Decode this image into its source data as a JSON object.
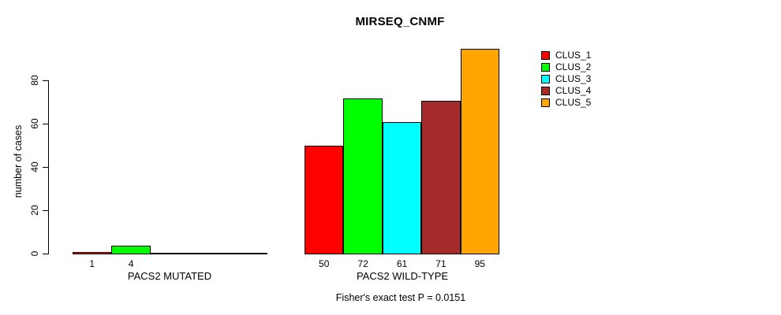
{
  "chart_data": {
    "type": "bar",
    "title": "MIRSEQ_CNMF",
    "ylabel": "number of cases",
    "xlabel": "",
    "categories": [
      "PACS2 MUTATED",
      "PACS2 WILD-TYPE"
    ],
    "series": [
      {
        "name": "CLUS_1",
        "color": "#FF0000",
        "values": [
          1,
          50
        ]
      },
      {
        "name": "CLUS_2",
        "color": "#00FF00",
        "values": [
          4,
          72
        ]
      },
      {
        "name": "CLUS_3",
        "color": "#00FFFF",
        "values": [
          0,
          61
        ]
      },
      {
        "name": "CLUS_4",
        "color": "#A52A2A",
        "values": [
          0,
          71
        ]
      },
      {
        "name": "CLUS_5",
        "color": "#FFA500",
        "values": [
          0,
          95
        ]
      }
    ],
    "bar_labels": [
      [
        "1",
        "4",
        "",
        "",
        ""
      ],
      [
        "50",
        "72",
        "61",
        "71",
        "95"
      ]
    ],
    "yticks": [
      0,
      20,
      40,
      60,
      80
    ],
    "ylim": [
      0,
      97
    ],
    "grid": false,
    "legend_position": "right",
    "annotation": "Fisher's exact test P = 0.0151"
  }
}
